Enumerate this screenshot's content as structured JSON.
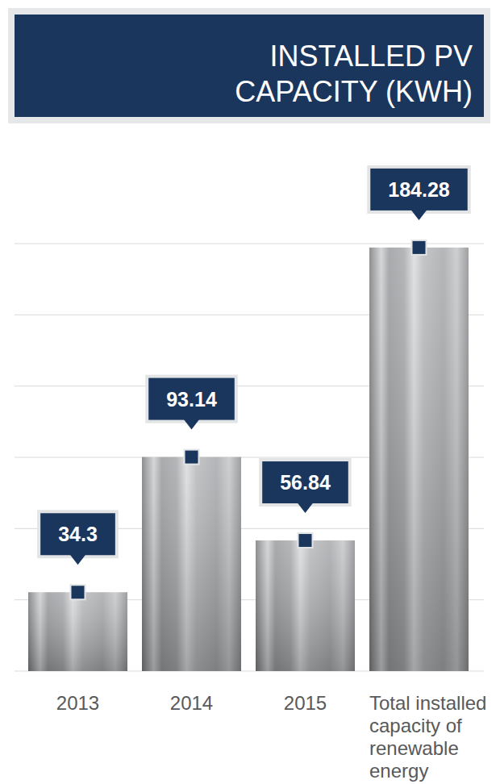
{
  "chart_data": {
    "type": "bar",
    "title": "INSTALLED PV CAPACITY (KWH)",
    "categories": [
      "2013",
      "2014",
      "2015",
      "Total installed capacity of renewable energy"
    ],
    "values": [
      34.3,
      93.14,
      56.84,
      184.28
    ],
    "color": "#a7a9ac",
    "ylim": [
      0,
      186
    ],
    "yticks": [
      0,
      31,
      62,
      93,
      124,
      155,
      186
    ],
    "grid": true,
    "data_labels": true,
    "tick_labels": "x"
  }
}
